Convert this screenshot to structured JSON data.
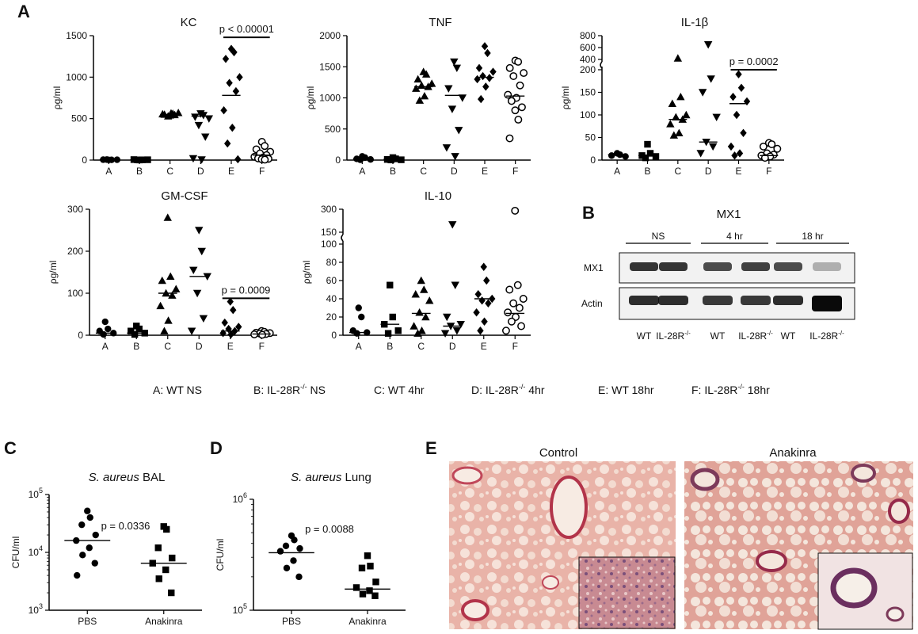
{
  "panel_labels": [
    "A",
    "B",
    "C",
    "D",
    "E"
  ],
  "legend": [
    {
      "prefix": "A: WT NS",
      "sup": "",
      "suffix": ""
    },
    {
      "prefix": "B: IL-28R",
      "sup": "-/-",
      "suffix": " NS"
    },
    {
      "prefix": "C: WT 4hr",
      "sup": "",
      "suffix": ""
    },
    {
      "prefix": "D: IL-28R",
      "sup": "-/-",
      "suffix": " 4hr"
    },
    {
      "prefix": "E: WT 18hr",
      "sup": "",
      "suffix": ""
    },
    {
      "prefix": "F: IL-28R",
      "sup": "-/-",
      "suffix": " 18hr"
    }
  ],
  "chart_data": [
    {
      "id": "kc",
      "type": "scatter",
      "title": "KC",
      "ylabel": "ρg/ml",
      "ylim": [
        0,
        1500
      ],
      "yticks": [
        0,
        500,
        1000,
        1500
      ],
      "categories": [
        "A",
        "B",
        "C",
        "D",
        "E",
        "F"
      ],
      "markers": [
        "circle",
        "square",
        "triangle",
        "tri-down",
        "diamond",
        "open-circle"
      ],
      "points": [
        [
          2,
          3,
          5,
          4,
          6
        ],
        [
          1,
          3,
          6,
          4,
          2
        ],
        [
          540,
          560,
          550,
          570,
          530,
          545,
          555,
          565
        ],
        [
          560,
          540,
          520,
          500,
          420,
          280,
          20,
          5
        ],
        [
          1340,
          1300,
          1220,
          1000,
          930,
          830,
          600,
          390,
          200,
          10
        ],
        [
          220,
          170,
          130,
          100,
          80,
          60,
          40,
          30,
          20,
          15,
          10,
          5
        ]
      ],
      "medians": [
        3,
        3,
        550,
        530,
        780,
        60
      ],
      "annotation": {
        "text": "p < 0.00001",
        "between": [
          4,
          5
        ],
        "y": 1480
      }
    },
    {
      "id": "tnf",
      "type": "scatter",
      "title": "TNF",
      "ylabel": "ρg/ml",
      "ylim": [
        0,
        2000
      ],
      "yticks": [
        0,
        500,
        1000,
        1500,
        2000
      ],
      "categories": [
        "A",
        "B",
        "C",
        "D",
        "E",
        "F"
      ],
      "markers": [
        "circle",
        "square",
        "triangle",
        "tri-down",
        "diamond",
        "open-circle"
      ],
      "points": [
        [
          60,
          40,
          20,
          10,
          5
        ],
        [
          40,
          20,
          10,
          5,
          2
        ],
        [
          1420,
          1380,
          1300,
          1230,
          1200,
          1180,
          1150,
          1030,
          960
        ],
        [
          1580,
          1480,
          1150,
          1000,
          820,
          480,
          200,
          60
        ],
        [
          1830,
          1720,
          1480,
          1420,
          1350,
          1320,
          1300,
          1180,
          980
        ],
        [
          1600,
          1580,
          1480,
          1400,
          1350,
          1200,
          1050,
          1000,
          950,
          850,
          800,
          650,
          350
        ]
      ],
      "medians": [
        20,
        15,
        1180,
        1040,
        1330,
        1030
      ]
    },
    {
      "id": "il1b",
      "type": "scatter",
      "title": "IL-1β",
      "ylabel": "ρg/ml",
      "ylim": [
        0,
        200
      ],
      "yticks": [
        0,
        50,
        100,
        150,
        200
      ],
      "break_ticks": [
        400,
        600,
        800
      ],
      "categories": [
        "A",
        "B",
        "C",
        "D",
        "E",
        "F"
      ],
      "markers": [
        "circle",
        "square",
        "triangle",
        "tri-down",
        "diamond",
        "open-circle"
      ],
      "points": [
        [
          15,
          12,
          10,
          8
        ],
        [
          35,
          15,
          10,
          8,
          5
        ],
        [
          420,
          140,
          125,
          100,
          95,
          90,
          80,
          60,
          55
        ],
        [
          650,
          180,
          150,
          95,
          40,
          30,
          15
        ],
        [
          190,
          160,
          140,
          130,
          100,
          60,
          30,
          15,
          10
        ],
        [
          38,
          35,
          30,
          25,
          15,
          12,
          10,
          8,
          5
        ]
      ],
      "medians": [
        12,
        10,
        90,
        40,
        125,
        10
      ],
      "annotation": {
        "text": "p = 0.0002",
        "between": [
          4,
          5
        ],
        "y": 200
      }
    },
    {
      "id": "gmcsf",
      "type": "scatter",
      "title": "GM-CSF",
      "ylabel": "ρg/ml",
      "ylim": [
        0,
        300
      ],
      "yticks": [
        0,
        100,
        200,
        300
      ],
      "categories": [
        "A",
        "B",
        "C",
        "D",
        "E",
        "F"
      ],
      "markers": [
        "circle",
        "square",
        "triangle",
        "tri-down",
        "diamond",
        "open-circle"
      ],
      "points": [
        [
          32,
          15,
          10,
          5,
          2
        ],
        [
          22,
          15,
          10,
          5,
          2
        ],
        [
          280,
          140,
          130,
          110,
          100,
          95,
          70,
          35,
          10
        ],
        [
          250,
          200,
          155,
          140,
          100,
          40,
          10
        ],
        [
          80,
          60,
          30,
          20,
          15,
          10,
          5,
          2
        ],
        [
          10,
          8,
          6,
          5,
          4,
          3,
          2,
          1
        ]
      ],
      "medians": [
        5,
        5,
        100,
        140,
        10,
        3
      ],
      "annotation": {
        "text": "p = 0.0009",
        "between": [
          4,
          5
        ],
        "y": 88
      }
    },
    {
      "id": "il10",
      "type": "scatter",
      "title": "IL-10",
      "ylabel": "ρg/ml",
      "ylim": [
        0,
        100
      ],
      "yticks": [
        0,
        20,
        40,
        60,
        80,
        100
      ],
      "break_ticks": [
        150,
        300
      ],
      "categories": [
        "A",
        "B",
        "C",
        "D",
        "E",
        "F"
      ],
      "markers": [
        "circle",
        "square",
        "triangle",
        "tri-down",
        "diamond",
        "open-circle"
      ],
      "points": [
        [
          30,
          20,
          5,
          3,
          2
        ],
        [
          55,
          20,
          12,
          5,
          2
        ],
        [
          60,
          50,
          45,
          38,
          25,
          20,
          10,
          5,
          2
        ],
        [
          200,
          55,
          20,
          12,
          10,
          5,
          2
        ],
        [
          75,
          60,
          45,
          40,
          38,
          35,
          25,
          15,
          5
        ],
        [
          290,
          55,
          50,
          40,
          35,
          30,
          25,
          20,
          15,
          10,
          5
        ]
      ],
      "medians": [
        3,
        12,
        24,
        10,
        40,
        24
      ]
    },
    {
      "id": "bal",
      "type": "scatter",
      "title": "S. aureus BAL",
      "ylabel": "CFU/ml",
      "yscale": "log",
      "ylim": [
        1000,
        100000
      ],
      "yticks": [
        {
          "base": "10",
          "exp": "3"
        },
        {
          "base": "10",
          "exp": "4"
        },
        {
          "base": "10",
          "exp": "5"
        }
      ],
      "categories": [
        "PBS",
        "Anakinra"
      ],
      "markers": [
        "circle",
        "square"
      ],
      "points": [
        [
          52000,
          40000,
          30000,
          20000,
          16000,
          12000,
          9000,
          6500,
          4000
        ],
        [
          28000,
          25000,
          12000,
          8000,
          6500,
          5000,
          3500,
          2000
        ]
      ],
      "medians": [
        16000,
        6500
      ],
      "annotation": {
        "text": "p = 0.0336"
      }
    },
    {
      "id": "lung",
      "type": "scatter",
      "title": "S. aureus Lung",
      "ylabel": "CFU/ml",
      "yscale": "log",
      "ylim": [
        100000,
        1000000
      ],
      "yticks": [
        {
          "base": "10",
          "exp": "5"
        },
        {
          "base": "10",
          "exp": "6"
        }
      ],
      "categories": [
        "PBS",
        "Anakinra"
      ],
      "markers": [
        "circle",
        "diamond-solid"
      ],
      "points": [
        [
          470000,
          430000,
          380000,
          360000,
          340000,
          280000,
          240000,
          200000
        ],
        [
          310000,
          250000,
          240000,
          180000,
          160000,
          150000,
          140000,
          135000
        ]
      ],
      "medians": [
        330000,
        155000
      ],
      "annotation": {
        "text": "p = 0.0088"
      }
    }
  ],
  "western": {
    "title": "MX1",
    "groups": [
      "NS",
      "4 hr",
      "18 hr"
    ],
    "rows": [
      "MX1",
      "Actin"
    ],
    "lanes": [
      "WT",
      "IL-28R",
      "WT",
      "IL-28R",
      "WT",
      "IL-28R"
    ],
    "lane_sup": [
      "",
      "-/-",
      "",
      "-/-",
      "",
      "-/-"
    ],
    "mx1_intensity": [
      0.85,
      0.85,
      0.75,
      0.8,
      0.75,
      0.3
    ],
    "actin_intensity": [
      0.85,
      0.85,
      0.8,
      0.8,
      0.85,
      1.0
    ]
  },
  "histology": {
    "panels": [
      "Control",
      "Anakinra"
    ]
  }
}
